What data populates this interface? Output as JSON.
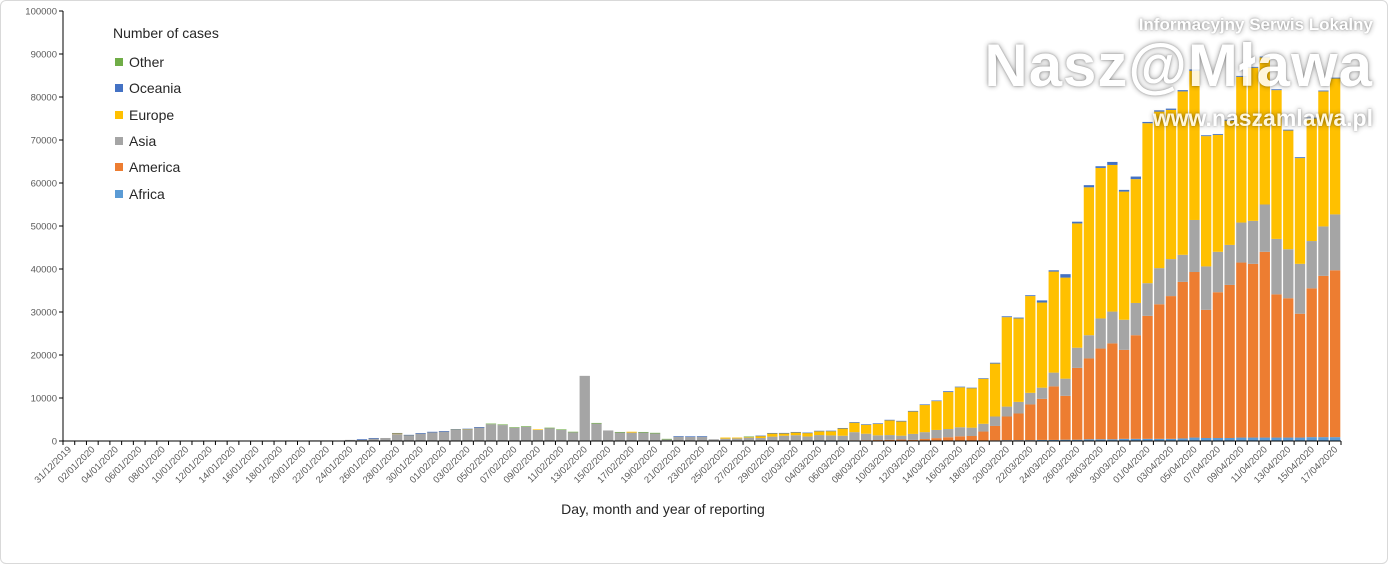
{
  "watermark": {
    "tagline": "Informacyjny Serwis Lokalny",
    "brand": "Nasz@Mława",
    "url": "www.naszamlawa.pl"
  },
  "chart_data": {
    "type": "bar",
    "stacked": true,
    "title": "",
    "xlabel": "Day, month and year of reporting",
    "ylabel": "",
    "ylim": [
      0,
      100000
    ],
    "yticks": [
      0,
      10000,
      20000,
      30000,
      40000,
      50000,
      60000,
      70000,
      80000,
      90000,
      100000
    ],
    "grid": false,
    "legend": {
      "title": "Number of cases",
      "placement": "top-left",
      "order": [
        "Other",
        "Oceania",
        "Europe",
        "Asia",
        "America",
        "Africa"
      ]
    },
    "x": [
      "31/12/2019",
      "01/01/2020",
      "02/01/2020",
      "03/01/2020",
      "04/01/2020",
      "05/01/2020",
      "06/01/2020",
      "07/01/2020",
      "08/01/2020",
      "09/01/2020",
      "10/01/2020",
      "11/01/2020",
      "12/01/2020",
      "13/01/2020",
      "14/01/2020",
      "15/01/2020",
      "16/01/2020",
      "17/01/2020",
      "18/01/2020",
      "19/01/2020",
      "20/01/2020",
      "21/01/2020",
      "22/01/2020",
      "23/01/2020",
      "24/01/2020",
      "25/01/2020",
      "26/01/2020",
      "27/01/2020",
      "28/01/2020",
      "29/01/2020",
      "30/01/2020",
      "31/01/2020",
      "01/02/2020",
      "02/02/2020",
      "03/02/2020",
      "04/02/2020",
      "05/02/2020",
      "06/02/2020",
      "07/02/2020",
      "08/02/2020",
      "09/02/2020",
      "10/02/2020",
      "11/02/2020",
      "12/02/2020",
      "13/02/2020",
      "14/02/2020",
      "15/02/2020",
      "16/02/2020",
      "17/02/2020",
      "18/02/2020",
      "19/02/2020",
      "20/02/2020",
      "21/02/2020",
      "22/02/2020",
      "23/02/2020",
      "24/02/2020",
      "25/02/2020",
      "26/02/2020",
      "27/02/2020",
      "28/02/2020",
      "29/02/2020",
      "01/03/2020",
      "02/03/2020",
      "03/03/2020",
      "04/03/2020",
      "05/03/2020",
      "06/03/2020",
      "07/03/2020",
      "08/03/2020",
      "09/03/2020",
      "10/03/2020",
      "11/03/2020",
      "12/03/2020",
      "13/03/2020",
      "14/03/2020",
      "15/03/2020",
      "16/03/2020",
      "17/03/2020",
      "18/03/2020",
      "19/03/2020",
      "20/03/2020",
      "21/03/2020",
      "22/03/2020",
      "23/03/2020",
      "24/03/2020",
      "25/03/2020",
      "26/03/2020",
      "27/03/2020",
      "28/03/2020",
      "29/03/2020",
      "30/03/2020",
      "31/03/2020",
      "01/04/2020",
      "02/04/2020",
      "03/04/2020",
      "04/04/2020",
      "05/04/2020",
      "06/04/2020",
      "07/04/2020",
      "08/04/2020",
      "09/04/2020",
      "10/04/2020",
      "11/04/2020",
      "12/04/2020",
      "13/04/2020",
      "14/04/2020",
      "15/04/2020",
      "16/04/2020",
      "17/04/2020"
    ],
    "series": [
      {
        "name": "Africa",
        "color": "#5B9BD5",
        "values": [
          0,
          0,
          0,
          0,
          0,
          0,
          0,
          0,
          0,
          0,
          0,
          0,
          0,
          0,
          0,
          0,
          0,
          0,
          0,
          0,
          0,
          0,
          0,
          0,
          0,
          0,
          0,
          0,
          0,
          0,
          0,
          0,
          0,
          0,
          0,
          0,
          0,
          0,
          0,
          0,
          0,
          0,
          0,
          0,
          0,
          0,
          0,
          0,
          0,
          0,
          0,
          0,
          0,
          0,
          0,
          0,
          0,
          0,
          0,
          0,
          0,
          0,
          0,
          0,
          1,
          2,
          5,
          10,
          15,
          20,
          30,
          40,
          50,
          60,
          70,
          80,
          90,
          100,
          100,
          150,
          200,
          200,
          200,
          250,
          250,
          300,
          300,
          400,
          400,
          400,
          500,
          500,
          500,
          500,
          500,
          600,
          800,
          700,
          700,
          700,
          800,
          800,
          800,
          800,
          800,
          800,
          900,
          900,
          900
        ]
      },
      {
        "name": "America",
        "color": "#ED7D31",
        "values": [
          0,
          0,
          0,
          0,
          0,
          0,
          0,
          0,
          0,
          0,
          0,
          0,
          0,
          0,
          0,
          0,
          0,
          0,
          0,
          0,
          0,
          0,
          0,
          0,
          0,
          0,
          0,
          0,
          0,
          0,
          0,
          0,
          0,
          0,
          0,
          0,
          0,
          0,
          0,
          0,
          0,
          0,
          0,
          0,
          0,
          0,
          0,
          0,
          0,
          0,
          0,
          0,
          0,
          0,
          0,
          0,
          0,
          0,
          0,
          0,
          20,
          30,
          50,
          60,
          80,
          100,
          120,
          150,
          180,
          200,
          250,
          300,
          200,
          400,
          600,
          800,
          1000,
          1060,
          2100,
          3350,
          5500,
          6200,
          8300,
          9550,
          12450,
          10200,
          16700,
          18800,
          21100,
          22300,
          20700,
          24100,
          28600,
          31300,
          33200,
          36400,
          38500,
          29800,
          33900,
          35600,
          40700,
          40400,
          43200,
          33300,
          32400,
          28800,
          34600,
          37500,
          38800
        ]
      },
      {
        "name": "Asia",
        "color": "#A5A5A5",
        "values": [
          27,
          0,
          0,
          17,
          0,
          15,
          0,
          0,
          0,
          0,
          0,
          1,
          0,
          1,
          17,
          0,
          4,
          4,
          17,
          136,
          19,
          151,
          140,
          97,
          259,
          300,
          680,
          700,
          1600,
          1350,
          1750,
          2100,
          2250,
          2650,
          2650,
          3200,
          3900,
          3700,
          3100,
          3300,
          2600,
          3000,
          2600,
          2050,
          15150,
          4050,
          2450,
          2050,
          1950,
          2050,
          1750,
          400,
          1000,
          950,
          1000,
          400,
          550,
          600,
          800,
          700,
          1000,
          1200,
          1300,
          1000,
          1300,
          1200,
          1100,
          1900,
          1500,
          1100,
          1100,
          900,
          1400,
          1600,
          1900,
          1900,
          2100,
          1940,
          1800,
          2200,
          2300,
          2700,
          2700,
          2600,
          3200,
          4000,
          4700,
          5400,
          7000,
          7400,
          7000,
          7500,
          7600,
          8400,
          8600,
          6300,
          12100,
          10100,
          9400,
          9300,
          9300,
          10000,
          11000,
          12900,
          11400,
          11600,
          11000,
          11500,
          13000
        ]
      },
      {
        "name": "Europe",
        "color": "#FFC000",
        "values": [
          0,
          0,
          0,
          0,
          0,
          0,
          0,
          0,
          0,
          0,
          0,
          0,
          0,
          0,
          0,
          0,
          0,
          0,
          0,
          0,
          0,
          0,
          0,
          0,
          0,
          0,
          0,
          0,
          250,
          50,
          0,
          0,
          0,
          50,
          150,
          0,
          0,
          0,
          0,
          0,
          100,
          0,
          0,
          0,
          0,
          0,
          0,
          0,
          200,
          0,
          0,
          0,
          0,
          0,
          0,
          0,
          250,
          200,
          100,
          500,
          800,
          600,
          700,
          800,
          900,
          1000,
          1700,
          2200,
          2100,
          2700,
          3400,
          3300,
          5200,
          6300,
          6700,
          8600,
          9300,
          9200,
          10500,
          12300,
          20800,
          19400,
          22500,
          19800,
          23500,
          23500,
          28900,
          34400,
          35000,
          34100,
          29800,
          28800,
          37200,
          36400,
          34700,
          38000,
          34700,
          30300,
          27200,
          28900,
          33900,
          35600,
          34200,
          34600,
          27600,
          24600,
          28500,
          31400,
          31600
        ]
      },
      {
        "name": "Oceania",
        "color": "#4472C4",
        "values": [
          0,
          0,
          0,
          0,
          0,
          0,
          0,
          0,
          0,
          0,
          0,
          0,
          0,
          0,
          0,
          0,
          0,
          0,
          0,
          0,
          0,
          0,
          0,
          0,
          0,
          150,
          20,
          0,
          20,
          30,
          100,
          40,
          60,
          50,
          60,
          50,
          0,
          0,
          0,
          0,
          0,
          0,
          0,
          0,
          0,
          0,
          0,
          0,
          0,
          0,
          0,
          0,
          150,
          150,
          150,
          0,
          0,
          0,
          0,
          50,
          50,
          50,
          50,
          100,
          100,
          100,
          100,
          150,
          100,
          100,
          150,
          150,
          150,
          150,
          150,
          200,
          150,
          100,
          100,
          200,
          200,
          200,
          200,
          500,
          300,
          800,
          400,
          500,
          400,
          700,
          400,
          600,
          300,
          300,
          300,
          300,
          300,
          200,
          200,
          200,
          200,
          200,
          200,
          200,
          200,
          200,
          200,
          200,
          200
        ]
      },
      {
        "name": "Other",
        "color": "#70AD47",
        "values": [
          0,
          0,
          0,
          0,
          0,
          0,
          0,
          0,
          0,
          0,
          0,
          0,
          0,
          0,
          0,
          0,
          0,
          0,
          0,
          0,
          0,
          0,
          0,
          0,
          0,
          0,
          0,
          0,
          0,
          0,
          0,
          0,
          0,
          0,
          0,
          0,
          150,
          150,
          100,
          150,
          0,
          100,
          100,
          100,
          0,
          150,
          0,
          50,
          0,
          50,
          150,
          100,
          0,
          0,
          0,
          0,
          0,
          0,
          150,
          0,
          0,
          0,
          0,
          0,
          0,
          0,
          0,
          0,
          0,
          0,
          0,
          0,
          0,
          0,
          0,
          0,
          0,
          0,
          0,
          0,
          0,
          0,
          0,
          0,
          0,
          0,
          0,
          0,
          0,
          0,
          0,
          0,
          0,
          0,
          0,
          0,
          0,
          0,
          0,
          0,
          0,
          0,
          0,
          0,
          0,
          0,
          0,
          0,
          0
        ]
      }
    ]
  }
}
